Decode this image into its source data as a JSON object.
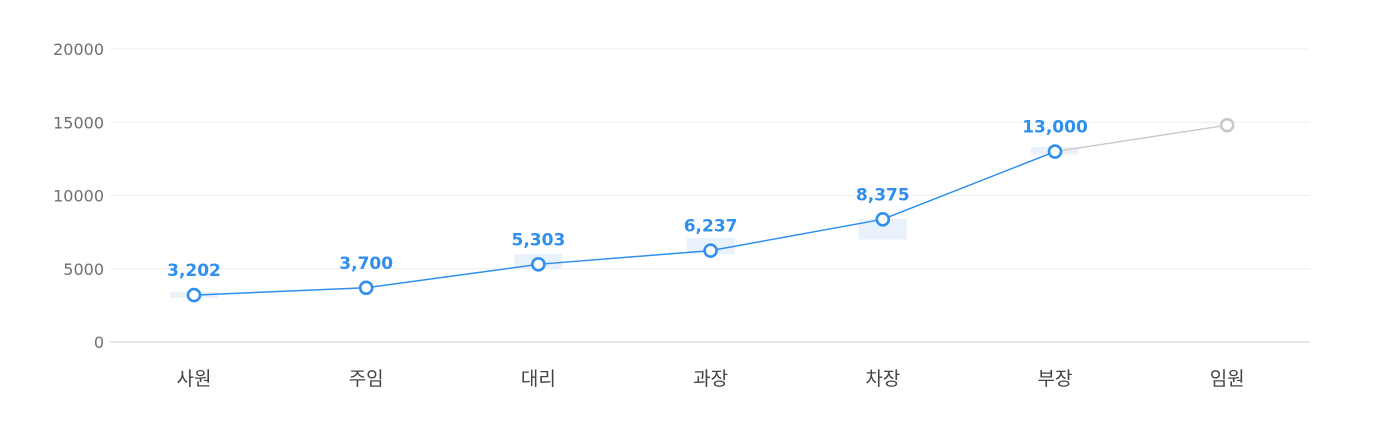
{
  "chart_data": {
    "type": "line",
    "categories": [
      "사원",
      "주임",
      "대리",
      "과장",
      "차장",
      "부장",
      "임원"
    ],
    "values": [
      3202,
      3700,
      5303,
      6237,
      8375,
      13000,
      14800
    ],
    "data_labels": [
      "3,202",
      "3,700",
      "5,303",
      "6,237",
      "8,375",
      "13,000",
      ""
    ],
    "range_bands": [
      [
        3000,
        3400
      ],
      null,
      [
        5000,
        6000
      ],
      [
        6000,
        7100
      ],
      [
        7000,
        8400
      ],
      [
        12800,
        13300
      ],
      null
    ],
    "highlighted_count": 6,
    "yticks": [
      "20000",
      "15000",
      "10000",
      "5000",
      "0"
    ],
    "ylim": [
      0,
      20000
    ],
    "grid": true,
    "title": "",
    "xlabel": "",
    "ylabel": "",
    "colors": {
      "active": "#2f8fee",
      "inactive": "#c8c8c8",
      "band": "#e9f1fb",
      "grid": "#eeeeee",
      "axis": "#dddddd"
    }
  }
}
